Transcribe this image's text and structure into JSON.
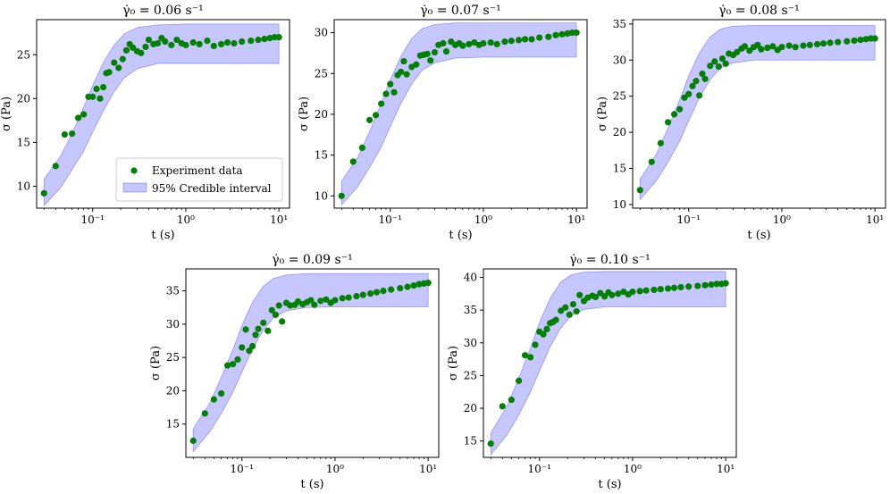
{
  "figure": {
    "panel_count": 5,
    "colors": {
      "band": "#0000ff",
      "points": "#008000",
      "axes": "#000000"
    },
    "legend_labels": [
      "Experiment data",
      "95% Credible interval"
    ]
  },
  "chart_data": [
    {
      "type": "scatter",
      "title": "γ̇₀ = 0.06 s⁻¹",
      "xlabel": "t (s)",
      "ylabel": "σ (Pa)",
      "xscale": "log",
      "xlim": [
        0.025,
        13
      ],
      "ylim": [
        7.5,
        29
      ],
      "yticks": [
        10,
        15,
        20,
        25
      ],
      "xticks": [
        0.1,
        1,
        10
      ],
      "xtick_labels": [
        "10⁻¹",
        "10⁰",
        "10¹"
      ],
      "legend": {
        "location": "lower-right",
        "entries": [
          "Experiment data",
          "95% Credible interval"
        ]
      },
      "series": [
        {
          "name": "95% Credible interval",
          "kind": "band",
          "x": [
            0.03,
            0.045,
            0.06,
            0.08,
            0.1,
            0.13,
            0.17,
            0.22,
            0.3,
            0.5,
            1,
            3,
            10
          ],
          "lower": [
            7.8,
            9.8,
            11.9,
            14.0,
            16.2,
            18.6,
            20.8,
            22.4,
            23.4,
            24.0,
            24.0,
            24.0,
            24.0
          ],
          "upper": [
            10.8,
            13.4,
            16.0,
            19.0,
            21.5,
            24.1,
            26.1,
            27.4,
            28.1,
            28.4,
            28.5,
            28.5,
            28.5
          ]
        },
        {
          "name": "Experiment data",
          "kind": "points",
          "x": [
            0.03,
            0.04,
            0.05,
            0.06,
            0.07,
            0.08,
            0.09,
            0.1,
            0.11,
            0.12,
            0.13,
            0.14,
            0.15,
            0.17,
            0.19,
            0.21,
            0.23,
            0.25,
            0.27,
            0.3,
            0.33,
            0.37,
            0.4,
            0.45,
            0.5,
            0.55,
            0.6,
            0.7,
            0.8,
            0.9,
            1.0,
            1.2,
            1.4,
            1.7,
            2.0,
            2.4,
            2.8,
            3.3,
            4.0,
            5.0,
            6.0,
            7.0,
            8.0,
            9.0,
            10.0
          ],
          "y": [
            9.2,
            12.3,
            15.9,
            16.0,
            17.8,
            18.2,
            20.2,
            20.2,
            21.1,
            20.0,
            21.3,
            22.9,
            23.0,
            24.1,
            23.5,
            24.5,
            25.5,
            26.2,
            25.8,
            25.4,
            25.2,
            25.9,
            26.7,
            26.2,
            26.3,
            26.9,
            26.5,
            26.1,
            26.7,
            26.3,
            26.1,
            26.4,
            26.2,
            26.6,
            26.0,
            26.2,
            26.4,
            26.3,
            26.5,
            26.6,
            26.7,
            26.8,
            26.9,
            27.0,
            27.0
          ]
        }
      ]
    },
    {
      "type": "scatter",
      "title": "γ̇₀ = 0.07 s⁻¹",
      "xlabel": "t (s)",
      "ylabel": "σ (Pa)",
      "xscale": "log",
      "xlim": [
        0.025,
        13
      ],
      "ylim": [
        8.5,
        31.6
      ],
      "yticks": [
        10,
        15,
        20,
        25,
        30
      ],
      "xticks": [
        0.1,
        1,
        10
      ],
      "xtick_labels": [
        "10⁻¹",
        "10⁰",
        "10¹"
      ],
      "series": [
        {
          "name": "95% Credible interval",
          "kind": "band",
          "x": [
            0.03,
            0.045,
            0.06,
            0.08,
            0.1,
            0.13,
            0.17,
            0.22,
            0.3,
            0.5,
            1,
            3,
            10
          ],
          "lower": [
            8.9,
            11.2,
            13.5,
            16.0,
            18.5,
            21.3,
            23.7,
            25.4,
            26.3,
            26.9,
            27.0,
            27.0,
            27.0
          ],
          "upper": [
            11.8,
            14.8,
            17.9,
            21.3,
            24.2,
            27.1,
            29.3,
            30.5,
            31.0,
            31.2,
            31.2,
            31.2,
            31.2
          ]
        },
        {
          "name": "Experiment data",
          "kind": "points",
          "x": [
            0.03,
            0.04,
            0.05,
            0.06,
            0.07,
            0.08,
            0.09,
            0.1,
            0.11,
            0.12,
            0.13,
            0.14,
            0.15,
            0.17,
            0.19,
            0.21,
            0.23,
            0.25,
            0.27,
            0.3,
            0.33,
            0.37,
            0.4,
            0.45,
            0.5,
            0.55,
            0.6,
            0.7,
            0.8,
            0.9,
            1.0,
            1.2,
            1.4,
            1.7,
            2.0,
            2.4,
            2.8,
            3.3,
            4.0,
            5.0,
            6.0,
            7.0,
            8.0,
            9.0,
            10.0
          ],
          "y": [
            10.0,
            14.2,
            15.9,
            19.3,
            19.9,
            21.3,
            22.5,
            23.7,
            22.7,
            24.8,
            25.2,
            26.5,
            24.9,
            25.8,
            26.1,
            27.2,
            27.3,
            27.4,
            26.6,
            27.6,
            28.5,
            28.7,
            27.7,
            28.9,
            28.5,
            28.7,
            28.4,
            28.6,
            28.8,
            28.5,
            28.7,
            28.8,
            28.6,
            28.9,
            29.0,
            29.1,
            29.2,
            29.2,
            29.4,
            29.5,
            29.7,
            29.8,
            29.9,
            30.0,
            30.0
          ]
        }
      ]
    },
    {
      "type": "scatter",
      "title": "γ̇₀ = 0.08 s⁻¹",
      "xlabel": "t (s)",
      "ylabel": "σ (Pa)",
      "xscale": "log",
      "xlim": [
        0.025,
        13
      ],
      "ylim": [
        9.5,
        35.6
      ],
      "yticks": [
        10,
        15,
        20,
        25,
        30,
        35
      ],
      "xticks": [
        0.1,
        1,
        10
      ],
      "xtick_labels": [
        "10⁻¹",
        "10⁰",
        "10¹"
      ],
      "series": [
        {
          "name": "95% Credible interval",
          "kind": "band",
          "x": [
            0.03,
            0.045,
            0.06,
            0.08,
            0.1,
            0.13,
            0.17,
            0.22,
            0.3,
            0.5,
            1,
            3,
            10
          ],
          "lower": [
            10.7,
            13.3,
            15.9,
            18.8,
            21.6,
            24.8,
            27.3,
            28.9,
            29.6,
            30.0,
            30.0,
            30.0,
            30.0
          ],
          "upper": [
            13.5,
            17.0,
            20.6,
            24.5,
            27.8,
            31.0,
            33.2,
            34.3,
            34.7,
            34.8,
            34.8,
            34.8,
            34.8
          ]
        },
        {
          "name": "Experiment data",
          "kind": "points",
          "x": [
            0.03,
            0.04,
            0.05,
            0.06,
            0.07,
            0.08,
            0.09,
            0.1,
            0.11,
            0.12,
            0.13,
            0.14,
            0.15,
            0.17,
            0.19,
            0.21,
            0.23,
            0.25,
            0.27,
            0.3,
            0.33,
            0.37,
            0.4,
            0.45,
            0.5,
            0.55,
            0.6,
            0.7,
            0.8,
            0.9,
            1.0,
            1.2,
            1.4,
            1.7,
            2.0,
            2.4,
            2.8,
            3.3,
            4.0,
            5.0,
            6.0,
            7.0,
            8.0,
            9.0,
            10.0
          ],
          "y": [
            12.0,
            15.9,
            18.5,
            21.4,
            22.5,
            23.2,
            24.8,
            25.3,
            26.4,
            27.1,
            25.1,
            28.1,
            27.4,
            29.2,
            29.8,
            29.1,
            30.2,
            29.5,
            30.9,
            30.7,
            31.1,
            31.6,
            31.9,
            31.3,
            31.8,
            32.1,
            31.5,
            31.7,
            31.9,
            31.4,
            31.8,
            32.0,
            31.8,
            32.0,
            32.1,
            32.2,
            32.3,
            32.4,
            32.5,
            32.6,
            32.7,
            32.8,
            32.9,
            33.0,
            33.0
          ]
        }
      ]
    },
    {
      "type": "scatter",
      "title": "γ̇₀ = 0.09 s⁻¹",
      "xlabel": "t (s)",
      "ylabel": "σ (Pa)",
      "xscale": "log",
      "xlim": [
        0.025,
        13
      ],
      "ylim": [
        10.0,
        38.3
      ],
      "yticks": [
        15,
        20,
        25,
        30,
        35
      ],
      "xticks": [
        0.1,
        1,
        10
      ],
      "xtick_labels": [
        "10⁻¹",
        "10⁰",
        "10¹"
      ],
      "series": [
        {
          "name": "95% Credible interval",
          "kind": "band",
          "x": [
            0.03,
            0.045,
            0.06,
            0.08,
            0.1,
            0.13,
            0.17,
            0.22,
            0.3,
            0.5,
            1,
            3,
            10
          ],
          "lower": [
            10.9,
            13.8,
            16.6,
            19.8,
            22.8,
            26.3,
            29.1,
            31.0,
            32.0,
            32.5,
            32.6,
            32.6,
            32.6
          ],
          "upper": [
            14.3,
            18.1,
            22.0,
            26.2,
            29.8,
            33.3,
            35.7,
            36.9,
            37.4,
            37.6,
            37.6,
            37.6,
            37.6
          ]
        },
        {
          "name": "Experiment data",
          "kind": "points",
          "x": [
            0.03,
            0.04,
            0.05,
            0.06,
            0.07,
            0.08,
            0.09,
            0.1,
            0.11,
            0.12,
            0.13,
            0.14,
            0.15,
            0.17,
            0.19,
            0.21,
            0.23,
            0.25,
            0.27,
            0.3,
            0.33,
            0.37,
            0.4,
            0.45,
            0.5,
            0.55,
            0.6,
            0.7,
            0.8,
            0.9,
            1.0,
            1.2,
            1.4,
            1.7,
            2.0,
            2.4,
            2.8,
            3.3,
            4.0,
            5.0,
            6.0,
            7.0,
            8.0,
            9.0,
            10.0
          ],
          "y": [
            12.5,
            16.6,
            18.7,
            19.6,
            23.8,
            24.0,
            24.7,
            26.5,
            29.2,
            26.0,
            26.7,
            28.4,
            29.3,
            30.2,
            29.0,
            32.1,
            31.4,
            32.8,
            30.4,
            33.2,
            32.8,
            32.9,
            33.4,
            33.0,
            33.3,
            33.6,
            32.9,
            33.5,
            33.7,
            33.2,
            33.6,
            33.9,
            34.0,
            34.2,
            34.4,
            34.6,
            34.8,
            35.0,
            35.2,
            35.4,
            35.6,
            35.8,
            36.0,
            36.1,
            36.2
          ]
        }
      ]
    },
    {
      "type": "scatter",
      "title": "γ̇₀ = 0.10 s⁻¹",
      "xlabel": "t (s)",
      "ylabel": "σ (Pa)",
      "xscale": "log",
      "xlim": [
        0.025,
        13
      ],
      "ylim": [
        12.5,
        41.3
      ],
      "yticks": [
        15,
        20,
        25,
        30,
        35,
        40
      ],
      "xticks": [
        0.1,
        1,
        10
      ],
      "xtick_labels": [
        "10⁻¹",
        "10⁰",
        "10¹"
      ],
      "series": [
        {
          "name": "95% Credible interval",
          "kind": "band",
          "x": [
            0.03,
            0.045,
            0.06,
            0.08,
            0.1,
            0.13,
            0.17,
            0.22,
            0.3,
            0.5,
            1,
            3,
            10
          ],
          "lower": [
            12.9,
            16.0,
            19.0,
            22.5,
            25.7,
            29.4,
            32.3,
            34.2,
            35.1,
            35.5,
            35.5,
            35.5,
            35.5
          ],
          "upper": [
            16.2,
            20.4,
            24.6,
            29.2,
            33.1,
            36.8,
            39.3,
            40.4,
            40.8,
            40.9,
            40.9,
            40.9,
            40.9
          ]
        },
        {
          "name": "Experiment data",
          "kind": "points",
          "x": [
            0.03,
            0.04,
            0.05,
            0.06,
            0.07,
            0.08,
            0.09,
            0.1,
            0.11,
            0.12,
            0.13,
            0.14,
            0.15,
            0.17,
            0.19,
            0.21,
            0.23,
            0.25,
            0.27,
            0.3,
            0.33,
            0.37,
            0.4,
            0.45,
            0.5,
            0.55,
            0.6,
            0.7,
            0.8,
            0.9,
            1.0,
            1.2,
            1.4,
            1.7,
            2.0,
            2.4,
            2.8,
            3.3,
            4.0,
            5.0,
            6.0,
            7.0,
            8.0,
            9.0,
            10.0
          ],
          "y": [
            14.6,
            20.3,
            21.3,
            24.2,
            28.1,
            27.8,
            29.7,
            31.7,
            31.3,
            32.1,
            33.0,
            33.2,
            33.5,
            34.9,
            35.4,
            34.3,
            35.9,
            34.8,
            37.3,
            36.4,
            36.9,
            37.2,
            37.0,
            37.6,
            37.1,
            37.7,
            37.3,
            37.5,
            37.8,
            37.4,
            37.8,
            37.9,
            38.0,
            38.1,
            38.2,
            38.3,
            38.4,
            38.5,
            38.6,
            38.7,
            38.8,
            38.9,
            39.0,
            39.0,
            39.1
          ]
        }
      ]
    }
  ]
}
